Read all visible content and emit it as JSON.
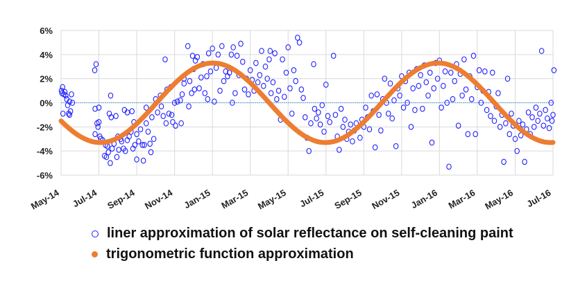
{
  "chart_data": {
    "type": "scatter",
    "title": "",
    "xlabel": "",
    "ylabel": "",
    "x_unit": "months since May-14",
    "xlim": [
      0,
      26
    ],
    "ylim": [
      -6,
      6
    ],
    "y_ticks": [
      "6%",
      "4%",
      "2%",
      "0%",
      "-2%",
      "-4%",
      "-6%"
    ],
    "y_tick_values": [
      6,
      4,
      2,
      0,
      -2,
      -4,
      -6
    ],
    "x_ticks": [
      "May-14",
      "Jul-14",
      "Sep-14",
      "Nov-14",
      "Jan-15",
      "Mar-15",
      "May-15",
      "Jul-15",
      "Sep-15",
      "Nov-15",
      "Jan-16",
      "Mar-16",
      "May-16",
      "Jul-16"
    ],
    "x_tick_values": [
      0,
      2,
      4,
      6,
      8,
      10,
      12,
      14,
      16,
      18,
      20,
      22,
      24,
      26
    ],
    "grid": true,
    "legend_placement": "bottom",
    "colors": {
      "scatter": "#1f1fff",
      "curve": "#ed7d31",
      "zero_line": "#5b9bd5",
      "grid": "#d9d9d9"
    },
    "series": [
      {
        "name": "liner approximation of solar reflectance on self-cleaning paint",
        "kind": "scatter",
        "points": [
          [
            0.02,
            1.0
          ],
          [
            0.05,
            0.8
          ],
          [
            0.08,
            1.3
          ],
          [
            0.1,
            -0.9
          ],
          [
            0.15,
            0.7
          ],
          [
            0.2,
            0.9
          ],
          [
            0.25,
            0.6
          ],
          [
            0.3,
            0.3
          ],
          [
            0.35,
            -0.2
          ],
          [
            0.4,
            -0.9
          ],
          [
            0.45,
            0.1
          ],
          [
            0.5,
            -0.7
          ],
          [
            0.55,
            0.7
          ],
          [
            0.6,
            0.0
          ],
          [
            0.45,
            -1.0
          ],
          [
            1.78,
            2.7
          ],
          [
            1.85,
            3.2
          ],
          [
            1.8,
            -0.5
          ],
          [
            1.9,
            -1.7
          ],
          [
            1.95,
            -2.0
          ],
          [
            2.0,
            -0.4
          ],
          [
            2.0,
            -1.6
          ],
          [
            1.8,
            -2.6
          ],
          [
            2.05,
            -2.8
          ],
          [
            2.1,
            -3.0
          ],
          [
            2.2,
            -3.1
          ],
          [
            2.3,
            -4.4
          ],
          [
            2.35,
            -3.5
          ],
          [
            2.4,
            -4.5
          ],
          [
            2.45,
            -3.6
          ],
          [
            2.5,
            -4.1
          ],
          [
            2.55,
            -0.9
          ],
          [
            2.6,
            -5.0
          ],
          [
            2.62,
            0.6
          ],
          [
            2.65,
            -1.2
          ],
          [
            2.7,
            -3.8
          ],
          [
            2.8,
            -3.4
          ],
          [
            2.9,
            -1.1
          ],
          [
            2.95,
            -4.5
          ],
          [
            3.0,
            -2.8
          ],
          [
            3.05,
            -3.9
          ],
          [
            3.15,
            -3.0
          ],
          [
            3.2,
            -3.2
          ],
          [
            3.3,
            -3.8
          ],
          [
            3.35,
            -0.6
          ],
          [
            3.4,
            -4.0
          ],
          [
            3.5,
            -3.1
          ],
          [
            3.5,
            -0.8
          ],
          [
            3.6,
            -2.8
          ],
          [
            3.7,
            -2.4
          ],
          [
            3.75,
            -0.7
          ],
          [
            3.8,
            -3.8
          ],
          [
            3.85,
            -1.6
          ],
          [
            3.9,
            -3.5
          ],
          [
            4.0,
            -2.6
          ],
          [
            4.0,
            -4.7
          ],
          [
            4.1,
            -3.2
          ],
          [
            4.2,
            -2.2
          ],
          [
            4.3,
            -3.5
          ],
          [
            4.35,
            -4.8
          ],
          [
            4.4,
            -3.5
          ],
          [
            4.5,
            -1.7
          ],
          [
            4.5,
            -0.4
          ],
          [
            4.6,
            -2.4
          ],
          [
            4.7,
            -3.4
          ],
          [
            4.75,
            -4.1
          ],
          [
            4.8,
            -1.2
          ],
          [
            4.9,
            -3.0
          ],
          [
            5.0,
            0.3
          ],
          [
            5.1,
            -0.8
          ],
          [
            5.25,
            0.6
          ],
          [
            5.3,
            -0.3
          ],
          [
            5.4,
            -1.1
          ],
          [
            5.5,
            3.6
          ],
          [
            5.55,
            -1.7
          ],
          [
            5.6,
            1.1
          ],
          [
            5.7,
            -0.9
          ],
          [
            5.8,
            1.3
          ],
          [
            5.85,
            -1.0
          ],
          [
            5.9,
            -1.6
          ],
          [
            6.0,
            0.0
          ],
          [
            6.05,
            -1.9
          ],
          [
            6.15,
            0.1
          ],
          [
            6.3,
            0.2
          ],
          [
            6.35,
            -1.7
          ],
          [
            6.4,
            0.7
          ],
          [
            6.5,
            1.6
          ],
          [
            6.5,
            2.0
          ],
          [
            6.7,
            4.7
          ],
          [
            6.75,
            -0.3
          ],
          [
            6.8,
            1.8
          ],
          [
            6.9,
            0.8
          ],
          [
            6.95,
            3.9
          ],
          [
            7.0,
            2.8
          ],
          [
            7.05,
            1.1
          ],
          [
            7.1,
            3.5
          ],
          [
            7.2,
            3.8
          ],
          [
            7.3,
            1.2
          ],
          [
            7.4,
            2.1
          ],
          [
            7.5,
            3.2
          ],
          [
            7.6,
            0.8
          ],
          [
            7.7,
            2.2
          ],
          [
            7.75,
            0.3
          ],
          [
            7.8,
            4.1
          ],
          [
            7.9,
            2.6
          ],
          [
            8.0,
            4.5
          ],
          [
            8.1,
            0.1
          ],
          [
            8.2,
            2.9
          ],
          [
            8.3,
            4.0
          ],
          [
            8.4,
            1.0
          ],
          [
            8.5,
            4.7
          ],
          [
            8.6,
            1.8
          ],
          [
            8.7,
            2.6
          ],
          [
            8.8,
            2.2
          ],
          [
            8.9,
            2.5
          ],
          [
            9.0,
            4.0
          ],
          [
            9.05,
            0.0
          ],
          [
            9.1,
            4.6
          ],
          [
            9.2,
            0.8
          ],
          [
            9.3,
            3.9
          ],
          [
            9.4,
            2.3
          ],
          [
            9.5,
            4.9
          ],
          [
            9.6,
            3.4
          ],
          [
            9.7,
            1.1
          ],
          [
            9.8,
            2.0
          ],
          [
            9.9,
            0.7
          ],
          [
            10.0,
            2.7
          ],
          [
            10.1,
            1.9
          ],
          [
            10.2,
            1.0
          ],
          [
            10.3,
            3.3
          ],
          [
            10.4,
            1.7
          ],
          [
            10.5,
            2.3
          ],
          [
            10.6,
            4.3
          ],
          [
            10.7,
            1.4
          ],
          [
            10.8,
            3.0
          ],
          [
            10.9,
            2.0
          ],
          [
            11.0,
            3.6
          ],
          [
            11.05,
            4.3
          ],
          [
            11.1,
            0.8
          ],
          [
            11.2,
            1.7
          ],
          [
            11.3,
            4.1
          ],
          [
            11.4,
            0.3
          ],
          [
            11.5,
            1.0
          ],
          [
            11.6,
            -1.4
          ],
          [
            11.7,
            3.6
          ],
          [
            11.8,
            0.5
          ],
          [
            11.9,
            2.5
          ],
          [
            12.0,
            4.6
          ],
          [
            12.1,
            1.2
          ],
          [
            12.2,
            -0.9
          ],
          [
            12.3,
            2.7
          ],
          [
            12.4,
            1.8
          ],
          [
            12.5,
            5.4
          ],
          [
            12.6,
            5.0
          ],
          [
            12.7,
            1.1
          ],
          [
            12.8,
            0.4
          ],
          [
            12.9,
            -1.2
          ],
          [
            13.0,
            -2.9
          ],
          [
            13.1,
            -4.0
          ],
          [
            13.2,
            -1.7
          ],
          [
            13.35,
            3.2
          ],
          [
            13.4,
            -0.5
          ],
          [
            13.5,
            -1.3
          ],
          [
            13.6,
            -0.8
          ],
          [
            13.7,
            -1.8
          ],
          [
            13.8,
            -0.2
          ],
          [
            13.9,
            -2.4
          ],
          [
            14.0,
            1.5
          ],
          [
            14.1,
            -1.1
          ],
          [
            14.2,
            -1.6
          ],
          [
            14.4,
            3.9
          ],
          [
            14.5,
            -1.0
          ],
          [
            14.6,
            -2.8
          ],
          [
            14.7,
            -3.9
          ],
          [
            14.8,
            -0.5
          ],
          [
            14.9,
            -2.0
          ],
          [
            15.0,
            -1.4
          ],
          [
            15.1,
            -3.0
          ],
          [
            15.2,
            -2.4
          ],
          [
            15.3,
            -1.8
          ],
          [
            15.4,
            -3.2
          ],
          [
            15.5,
            -2.3
          ],
          [
            15.6,
            -1.7
          ],
          [
            15.8,
            -2.9
          ],
          [
            15.9,
            -1.4
          ],
          [
            16.0,
            -2.0
          ],
          [
            16.1,
            -0.4
          ],
          [
            16.2,
            -1.2
          ],
          [
            16.3,
            -2.2
          ],
          [
            16.4,
            0.6
          ],
          [
            16.5,
            -0.7
          ],
          [
            16.6,
            -3.7
          ],
          [
            16.7,
            0.7
          ],
          [
            16.8,
            -1.0
          ],
          [
            16.9,
            -2.3
          ],
          [
            17.0,
            0.3
          ],
          [
            17.1,
            2.0
          ],
          [
            17.2,
            0.0
          ],
          [
            17.3,
            -0.9
          ],
          [
            17.4,
            1.6
          ],
          [
            17.5,
            -1.3
          ],
          [
            17.6,
            0.2
          ],
          [
            17.7,
            -3.6
          ],
          [
            17.8,
            1.2
          ],
          [
            17.9,
            0.6
          ],
          [
            18.0,
            2.2
          ],
          [
            18.1,
            -0.4
          ],
          [
            18.2,
            1.8
          ],
          [
            18.3,
            0.0
          ],
          [
            18.4,
            2.5
          ],
          [
            18.5,
            -2.0
          ],
          [
            18.6,
            1.2
          ],
          [
            18.7,
            -0.6
          ],
          [
            18.8,
            2.8
          ],
          [
            18.9,
            1.4
          ],
          [
            19.0,
            2.3
          ],
          [
            19.1,
            -0.5
          ],
          [
            19.2,
            3.1
          ],
          [
            19.3,
            1.7
          ],
          [
            19.4,
            0.6
          ],
          [
            19.5,
            2.5
          ],
          [
            19.6,
            -3.3
          ],
          [
            19.7,
            1.2
          ],
          [
            19.8,
            3.3
          ],
          [
            19.9,
            2.0
          ],
          [
            20.0,
            3.5
          ],
          [
            20.1,
            -0.4
          ],
          [
            20.2,
            1.4
          ],
          [
            20.3,
            2.6
          ],
          [
            20.4,
            0.0
          ],
          [
            20.5,
            -5.3
          ],
          [
            20.6,
            2.5
          ],
          [
            20.7,
            0.3
          ],
          [
            20.8,
            1.8
          ],
          [
            20.9,
            3.2
          ],
          [
            21.0,
            -1.9
          ],
          [
            21.1,
            2.4
          ],
          [
            21.2,
            0.6
          ],
          [
            21.3,
            3.6
          ],
          [
            21.4,
            1.1
          ],
          [
            21.5,
            -2.6
          ],
          [
            21.6,
            2.2
          ],
          [
            21.7,
            0.3
          ],
          [
            21.8,
            3.9
          ],
          [
            21.9,
            -2.6
          ],
          [
            22.0,
            1.3
          ],
          [
            22.1,
            2.7
          ],
          [
            22.2,
            0.0
          ],
          [
            22.3,
            1.0
          ],
          [
            22.4,
            2.6
          ],
          [
            22.5,
            -0.6
          ],
          [
            22.6,
            0.9
          ],
          [
            22.7,
            -1.1
          ],
          [
            22.8,
            2.5
          ],
          [
            22.9,
            -1.5
          ],
          [
            23.0,
            -0.3
          ],
          [
            23.1,
            0.8
          ],
          [
            23.2,
            -2.0
          ],
          [
            23.3,
            -1.0
          ],
          [
            23.4,
            -4.9
          ],
          [
            23.5,
            -1.7
          ],
          [
            23.6,
            2.0
          ],
          [
            23.7,
            -2.6
          ],
          [
            23.8,
            -0.9
          ],
          [
            23.9,
            -1.9
          ],
          [
            24.0,
            -3.0
          ],
          [
            24.1,
            -4.0
          ],
          [
            24.2,
            -1.5
          ],
          [
            24.3,
            -2.7
          ],
          [
            24.4,
            -1.8
          ],
          [
            24.5,
            -4.9
          ],
          [
            24.6,
            -2.2
          ],
          [
            24.7,
            -0.8
          ],
          [
            24.8,
            -2.6
          ],
          [
            24.9,
            -1.2
          ],
          [
            25.0,
            -2.0
          ],
          [
            25.1,
            -0.4
          ],
          [
            25.2,
            -1.5
          ],
          [
            25.3,
            -0.9
          ],
          [
            25.4,
            4.3
          ],
          [
            25.5,
            -1.9
          ],
          [
            25.6,
            -0.6
          ],
          [
            25.7,
            -1.3
          ],
          [
            25.8,
            -2.1
          ],
          [
            25.9,
            0.0
          ],
          [
            26.0,
            -1.0
          ],
          [
            26.05,
            2.7
          ],
          [
            25.95,
            -1.5
          ]
        ]
      },
      {
        "name": "trigonometric function approximation",
        "kind": "line",
        "function": {
          "amplitude": 3.3,
          "period_months": 11.9,
          "zero_crossing_month": 5.05
        }
      }
    ]
  }
}
